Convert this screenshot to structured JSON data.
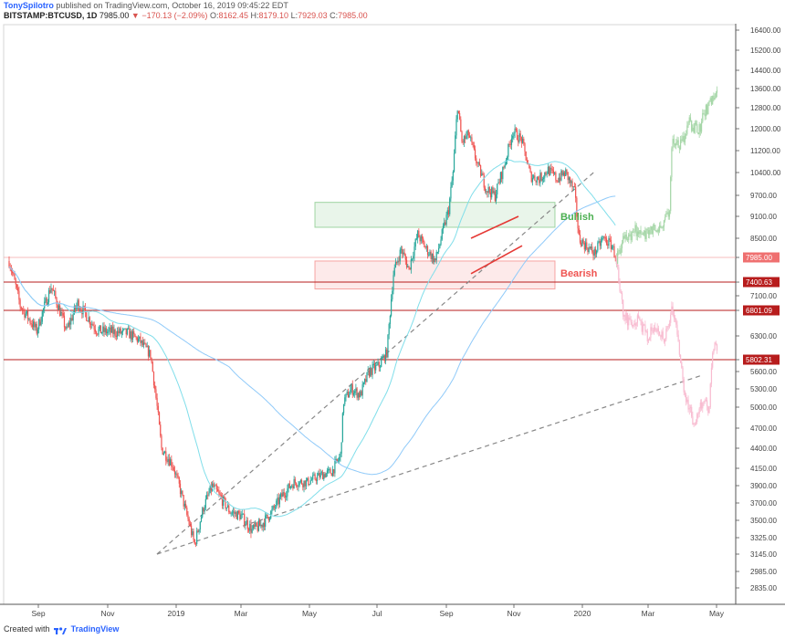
{
  "header": {
    "author": "TonySpilotro",
    "published": "published on TradingView.com, October 16, 2019 09:45:22 EDT",
    "symbol": "BITSTAMP:BTCUSD, 1D",
    "last": "7985.00",
    "change": "−170.13 (−2.09%)",
    "o_label": "O:",
    "o_value": "8162.45",
    "h_label": "H:",
    "h_value": "8179.10",
    "l_label": "L:",
    "l_value": "7929.03",
    "c_label": "C:",
    "c_value": "7985.00"
  },
  "footer": {
    "created_with": "Created with",
    "brand": "TradingView"
  },
  "chart_data": {
    "type": "candlestick",
    "symbol": "BITSTAMP:BTCUSD",
    "interval": "1D",
    "x_tick_labels": [
      "Sep",
      "Nov",
      "2019",
      "Mar",
      "May",
      "Jul",
      "Sep",
      "Nov",
      "2020",
      "Mar",
      "May"
    ],
    "y_tick_labels": [
      "16400.00",
      "15200.00",
      "14400.00",
      "13600.00",
      "12800.00",
      "12000.00",
      "11200.00",
      "10400.00",
      "9700.00",
      "9100.00",
      "8500.00",
      "7985.00",
      "7400.00",
      "7100.00",
      "6801.09",
      "6300.00",
      "5802.31",
      "5600.00",
      "5300.00",
      "5000.00",
      "4700.00",
      "4400.00",
      "4150.00",
      "3900.00",
      "3700.00",
      "3500.00",
      "3325.00",
      "3145.00",
      "2985.00",
      "2835.00"
    ],
    "price_labels": [
      {
        "value": "7985.00",
        "color": "#ef7070"
      },
      {
        "value": "7400.63",
        "color": "#b71c1c"
      },
      {
        "value": "6801.09",
        "color": "#b71c1c"
      },
      {
        "value": "5802.31",
        "color": "#b71c1c"
      }
    ],
    "horizontal_lines": [
      7985,
      7400.63,
      6801.09,
      5802.31
    ],
    "zones": [
      {
        "label": "Bullish",
        "low": 8800,
        "high": 9500,
        "color": "#4caf50"
      },
      {
        "label": "Bearish",
        "low": 7250,
        "high": 7900,
        "color": "#ef5350"
      }
    ],
    "annotations": [
      "Bullish",
      "Bearish"
    ],
    "colors": {
      "up": "#26a69a",
      "down": "#ef5350",
      "ma_fast": "#90caf9",
      "ma_slow": "#80deea",
      "projection_up": "#a5d6a7",
      "projection_down": "#f8bbd0"
    },
    "key_prices": {
      "start": 7900,
      "low": 3150,
      "high": 13800,
      "current": 7985,
      "projection_high": 13600,
      "projection_low": 4800
    }
  }
}
